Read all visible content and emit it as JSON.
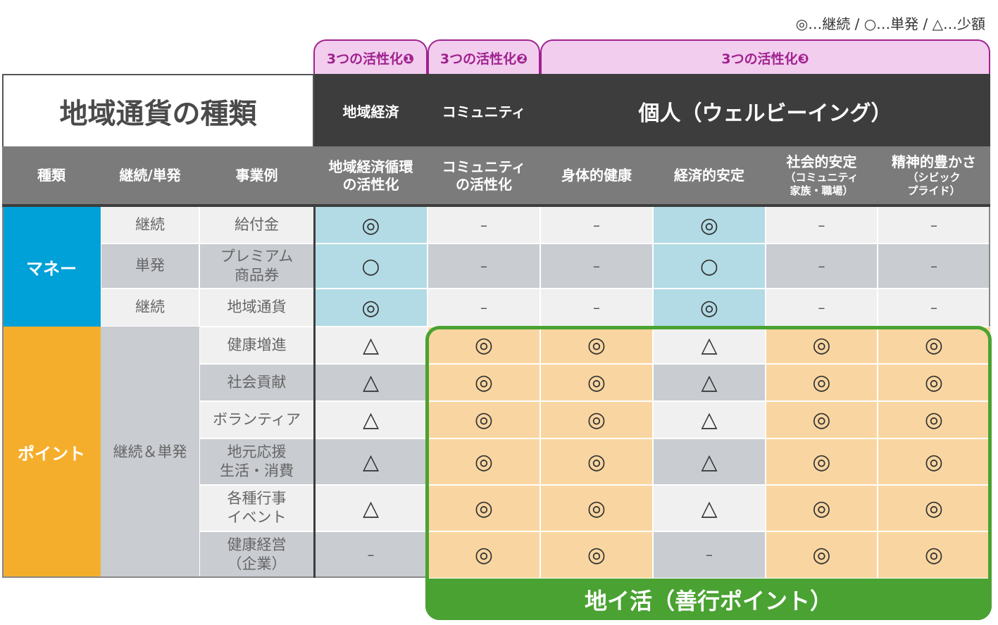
{
  "legend": "◎…継続 / ○…単発 / △…少額",
  "activation_headers": [
    "3つの活性化❶",
    "3つの活性化❷",
    "3つの活性化❸"
  ],
  "title": "地域通貨の種類",
  "dark_headers": [
    "地域経済",
    "コミュニティ",
    "個人（ウェルビーイング）"
  ],
  "columns": {
    "type": "種類",
    "cont": "継続/単発",
    "example": "事業例",
    "c1": [
      "地域経済循環",
      "の活性化"
    ],
    "c2": [
      "コミュニティ",
      "の活性化"
    ],
    "c3": "身体的健康",
    "c4": "経済的安定",
    "c5": [
      "社会的安定",
      "（コミュニティ",
      "家族・職場）"
    ],
    "c6": [
      "精神的豊かさ",
      "（シビック",
      "プライド）"
    ]
  },
  "categories": {
    "money": "マネー",
    "point": "ポイント",
    "point_cont": "継続＆単発"
  },
  "rows": [
    {
      "cont": "継続",
      "example": [
        "給付金"
      ],
      "values": [
        "◎",
        "–",
        "–",
        "◎",
        "–",
        "–"
      ]
    },
    {
      "cont": "単発",
      "example": [
        "プレミアム",
        "商品券"
      ],
      "values": [
        "○",
        "–",
        "–",
        "○",
        "–",
        "–"
      ]
    },
    {
      "cont": "継続",
      "example": [
        "地域通貨"
      ],
      "values": [
        "◎",
        "–",
        "–",
        "◎",
        "–",
        "–"
      ]
    },
    {
      "example": [
        "健康増進"
      ],
      "values": [
        "△",
        "◎",
        "◎",
        "△",
        "◎",
        "◎"
      ]
    },
    {
      "example": [
        "社会貢献"
      ],
      "values": [
        "△",
        "◎",
        "◎",
        "△",
        "◎",
        "◎"
      ]
    },
    {
      "example": [
        "ボランティア"
      ],
      "values": [
        "△",
        "◎",
        "◎",
        "△",
        "◎",
        "◎"
      ]
    },
    {
      "example": [
        "地元応援",
        "生活・消費"
      ],
      "values": [
        "△",
        "◎",
        "◎",
        "△",
        "◎",
        "◎"
      ]
    },
    {
      "example": [
        "各種行事",
        "イベント"
      ],
      "values": [
        "△",
        "◎",
        "◎",
        "△",
        "◎",
        "◎"
      ]
    },
    {
      "example": [
        "健康経営",
        "（企業）"
      ],
      "values": [
        "–",
        "◎",
        "◎",
        "–",
        "◎",
        "◎"
      ]
    }
  ],
  "banner": "地イ活（善行ポイント）",
  "colors": {
    "cyan": "#00a0d8",
    "orange": "#f5ae2c",
    "green": "#4aa232",
    "magenta": "#a0228f"
  }
}
